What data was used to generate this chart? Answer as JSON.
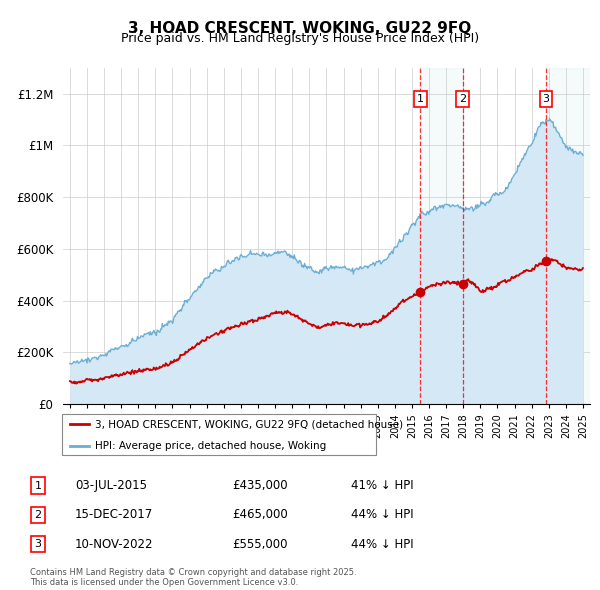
{
  "title": "3, HOAD CRESCENT, WOKING, GU22 9FQ",
  "subtitle": "Price paid vs. HM Land Registry's House Price Index (HPI)",
  "ylim": [
    0,
    1300000
  ],
  "yticks": [
    0,
    200000,
    400000,
    600000,
    800000,
    1000000,
    1200000
  ],
  "ytick_labels": [
    "£0",
    "£200K",
    "£400K",
    "£600K",
    "£800K",
    "£1M",
    "£1.2M"
  ],
  "hpi_color": "#6baed6",
  "hpi_fill_color": "#d4e8f5",
  "price_color": "#cc0000",
  "sale1_date": "03-JUL-2015",
  "sale1_price": 435000,
  "sale1_pct": "41%",
  "sale2_date": "15-DEC-2017",
  "sale2_price": 465000,
  "sale2_pct": "44%",
  "sale3_date": "10-NOV-2022",
  "sale3_price": 555000,
  "sale3_pct": "44%",
  "sale1_year": 2015.5,
  "sale2_year": 2017.96,
  "sale3_year": 2022.85,
  "footer": "Contains HM Land Registry data © Crown copyright and database right 2025.\nThis data is licensed under the Open Government Licence v3.0.",
  "legend_label1": "3, HOAD CRESCENT, WOKING, GU22 9FQ (detached house)",
  "legend_label2": "HPI: Average price, detached house, Woking",
  "xstart": 1995,
  "xend": 2025
}
